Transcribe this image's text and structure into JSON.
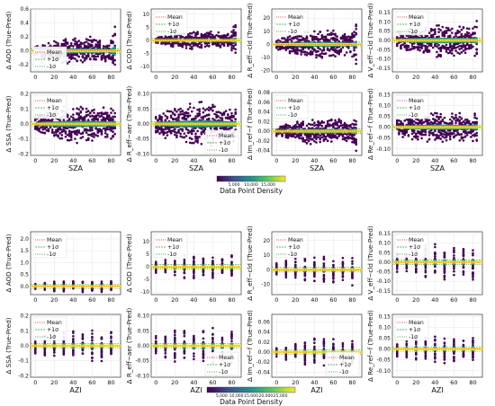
{
  "colors": {
    "points": "#440154",
    "band": "#21918c",
    "mean_line": "#2ca02c",
    "mean_dots": "#fde725",
    "grid": "#e6e6e6",
    "axis": "#333333",
    "colormap": [
      "#440154",
      "#3b528b",
      "#21918c",
      "#5ec962",
      "#fde725"
    ]
  },
  "legend": {
    "mean": "Mean",
    "plus": "+1σ",
    "minus": "-1σ"
  },
  "colorbars": [
    {
      "label": "Data Point Density",
      "ticks": [
        "5,000",
        "10,000",
        "15,000"
      ]
    },
    {
      "label": "Data Point Density",
      "ticks": [
        "5,000",
        "10,000",
        "15,000",
        "20,000",
        "25,000"
      ]
    }
  ],
  "chart_data": [
    {
      "type": "scatter",
      "ylabel": "Δ AOD (True-Pred)",
      "xlabel": "",
      "ylim": [
        -0.3,
        0.6
      ],
      "yticks": [
        "-0.2",
        "0.0",
        "0.2",
        "0.4",
        "0.6"
      ],
      "xticks": [
        "0",
        "20",
        "40",
        "60",
        "80"
      ],
      "grid": true,
      "legend": "bottom-left",
      "spread": [
        0.08,
        0.22,
        0.6
      ],
      "x": "SZA"
    },
    {
      "type": "scatter",
      "ylabel": "Δ COD (True-Pred)",
      "xlabel": "",
      "ylim": [
        -12,
        12
      ],
      "yticks": [
        "-10",
        "-5",
        "0",
        "5",
        "10"
      ],
      "xticks": [
        "0",
        "20",
        "40",
        "60",
        "80"
      ],
      "grid": true,
      "legend": "top-left",
      "spread": [
        1,
        4,
        11
      ],
      "x": "SZA"
    },
    {
      "type": "scatter",
      "ylabel": "Δ R_eff−cld (True-Pred)",
      "xlabel": "",
      "ylim": [
        -21,
        27
      ],
      "yticks": [
        "-20",
        "-10",
        "0",
        "10",
        "20"
      ],
      "xticks": [
        "0",
        "20",
        "40",
        "60",
        "80"
      ],
      "grid": true,
      "legend": "top-left",
      "spread": [
        4,
        12,
        24
      ],
      "x": "SZA"
    },
    {
      "type": "scatter",
      "ylabel": "Δ V_eff−cld (True-Pred)",
      "xlabel": "",
      "ylim": [
        -0.17,
        0.17
      ],
      "yticks": [
        "-0.15",
        "-0.10",
        "-0.05",
        "0.00",
        "0.05",
        "0.10",
        "0.15"
      ],
      "xticks": [
        "0",
        "20",
        "40",
        "60",
        "80"
      ],
      "grid": true,
      "legend": "top-left",
      "spread": [
        0.05,
        0.1,
        0.16
      ],
      "x": "SZA"
    },
    {
      "type": "scatter",
      "ylabel": "Δ SSA (True-Pred)",
      "xlabel": "SZA",
      "ylim": [
        -0.21,
        0.21
      ],
      "yticks": [
        "-0.2",
        "-0.1",
        "0.0",
        "0.1",
        "0.2"
      ],
      "xticks": [
        "0",
        "20",
        "40",
        "60",
        "80"
      ],
      "grid": true,
      "legend": "top-left",
      "spread": [
        0.06,
        0.14,
        0.2
      ],
      "x": "SZA"
    },
    {
      "type": "scatter",
      "ylabel": "Δ R_eff−aer (True-Pred)",
      "xlabel": "SZA",
      "ylim": [
        -0.105,
        0.105
      ],
      "yticks": [
        "-0.10",
        "-0.05",
        "0.00",
        "0.05",
        "0.10"
      ],
      "xticks": [
        "0",
        "20",
        "40",
        "60",
        "80"
      ],
      "grid": true,
      "legend": "bottom-right",
      "spread": [
        0.04,
        0.08,
        0.1
      ],
      "x": "SZA"
    },
    {
      "type": "scatter",
      "ylabel": "Δ Im_ref−f (True-Pred)",
      "xlabel": "SZA",
      "ylim": [
        -0.05,
        0.08
      ],
      "yticks": [
        "-0.04",
        "-0.02",
        "0.00",
        "0.02",
        "0.04",
        "0.06",
        "0.08"
      ],
      "xticks": [
        "0",
        "20",
        "40",
        "60",
        "80"
      ],
      "grid": true,
      "legend": "top-left",
      "spread": [
        0.01,
        0.03,
        0.06
      ],
      "x": "SZA"
    },
    {
      "type": "scatter",
      "ylabel": "Δ Re_ref−f (True-Pred)",
      "xlabel": "SZA",
      "ylim": [
        -0.13,
        0.16
      ],
      "yticks": [
        "-0.10",
        "-0.05",
        "0.00",
        "0.05",
        "0.10",
        "0.15"
      ],
      "xticks": [
        "0",
        "20",
        "40",
        "60",
        "80"
      ],
      "grid": true,
      "legend": "top-left",
      "spread": [
        0.04,
        0.08,
        0.14
      ],
      "x": "SZA"
    },
    {
      "type": "scatter",
      "ylabel": "Δ AOD (True-Pred)",
      "xlabel": "",
      "ylim": [
        -0.35,
        2.3
      ],
      "yticks": [
        "0.0",
        "0.5",
        "1.0",
        "1.5",
        "2.0"
      ],
      "xticks": [
        "0",
        "20",
        "40",
        "60",
        "80"
      ],
      "grid": true,
      "legend": "top-left",
      "spread": [
        0.15,
        0.3,
        0.6
      ],
      "x": "AZI"
    },
    {
      "type": "scatter",
      "ylabel": "Δ COD (True-Pred)",
      "xlabel": "",
      "ylim": [
        -11,
        14
      ],
      "yticks": [
        "-10",
        "-5",
        "0",
        "5",
        "10"
      ],
      "xticks": [
        "0",
        "20",
        "40",
        "60",
        "80"
      ],
      "grid": true,
      "legend": "top-left",
      "spread": [
        3,
        5,
        12
      ],
      "x": "AZI"
    },
    {
      "type": "scatter",
      "ylabel": "Δ R_eff−cld (True-Pred)",
      "xlabel": "",
      "ylim": [
        -17,
        26
      ],
      "yticks": [
        "-10",
        "0",
        "10",
        "20"
      ],
      "xticks": [
        "0",
        "20",
        "40",
        "60",
        "80"
      ],
      "grid": true,
      "legend": "top-left",
      "spread": [
        6,
        10,
        22
      ],
      "x": "AZI"
    },
    {
      "type": "scatter",
      "ylabel": "Δ V_eff−cld (True-Pred)",
      "xlabel": "",
      "ylim": [
        -0.17,
        0.16
      ],
      "yticks": [
        "-0.15",
        "-0.10",
        "-0.05",
        "0.00",
        "0.05",
        "0.10",
        "0.15"
      ],
      "xticks": [
        "0",
        "20",
        "40",
        "60",
        "80"
      ],
      "grid": true,
      "legend": "top-left",
      "spread": [
        0.06,
        0.1,
        0.15
      ],
      "x": "AZI"
    },
    {
      "type": "scatter",
      "ylabel": "Δ SSA (True-Pred)",
      "xlabel": "AZI",
      "ylim": [
        -0.21,
        0.21
      ],
      "yticks": [
        "-0.2",
        "-0.1",
        "0.0",
        "0.1",
        "0.2"
      ],
      "xticks": [
        "0",
        "20",
        "40",
        "60",
        "80"
      ],
      "grid": true,
      "legend": "top-left",
      "spread": [
        0.06,
        0.12,
        0.2
      ],
      "x": "AZI"
    },
    {
      "type": "scatter",
      "ylabel": "Δ R_eff−aer (True-Pred)",
      "xlabel": "AZI",
      "ylim": [
        -0.105,
        0.105
      ],
      "yticks": [
        "-0.10",
        "-0.05",
        "0.00",
        "0.05",
        "0.10"
      ],
      "xticks": [
        "0",
        "20",
        "40",
        "60",
        "80"
      ],
      "grid": true,
      "legend": "bottom-right",
      "spread": [
        0.04,
        0.07,
        0.1
      ],
      "x": "AZI"
    },
    {
      "type": "scatter",
      "ylabel": "Δ Im_ref−f (True-Pred)",
      "xlabel": "AZI",
      "ylim": [
        -0.05,
        0.075
      ],
      "yticks": [
        "-0.04",
        "-0.02",
        "0.00",
        "0.02",
        "0.04",
        "0.06"
      ],
      "xticks": [
        "0",
        "20",
        "40",
        "60",
        "80"
      ],
      "grid": true,
      "legend": "bottom-right",
      "spread": [
        0.01,
        0.03,
        0.06
      ],
      "x": "AZI"
    },
    {
      "type": "scatter",
      "ylabel": "Δ Re_ref−f (True-Pred)",
      "xlabel": "AZI",
      "ylim": [
        -0.13,
        0.16
      ],
      "yticks": [
        "-0.10",
        "-0.05",
        "0.00",
        "0.05",
        "0.10",
        "0.15"
      ],
      "xticks": [
        "0",
        "20",
        "40",
        "60",
        "80"
      ],
      "grid": true,
      "legend": "top-left",
      "spread": [
        0.04,
        0.07,
        0.14
      ],
      "x": "AZI"
    }
  ]
}
